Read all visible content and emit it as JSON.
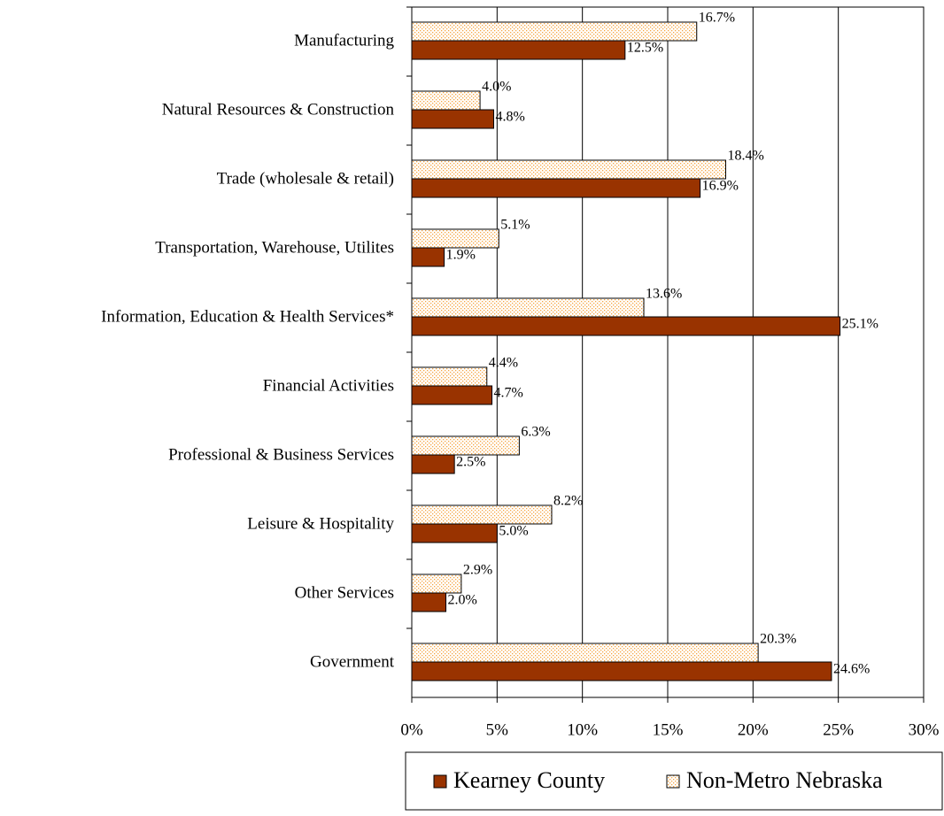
{
  "chart_data": {
    "type": "bar",
    "orientation": "horizontal",
    "categories": [
      "Manufacturing",
      "Natural Resources & Construction",
      "Trade (wholesale & retail)",
      "Transportation, Warehouse, Utilites",
      "Information, Education & Health Services*",
      "Financial Activities",
      "Professional & Business Services",
      "Leisure & Hospitality",
      "Other Services",
      "Government"
    ],
    "series": [
      {
        "name": "Kearney County",
        "color": "#993300",
        "pattern": "solid",
        "values": [
          12.5,
          4.8,
          16.9,
          1.9,
          25.1,
          4.7,
          2.5,
          5.0,
          2.0,
          24.6
        ],
        "value_labels": [
          "12.5%",
          "4.8%",
          "16.9%",
          "1.9%",
          "25.1%",
          "4.7%",
          "2.5%",
          "5.0%",
          "2.0%",
          "24.6%"
        ]
      },
      {
        "name": "Non-Metro Nebraska",
        "color": "#f5a442",
        "pattern": "dots",
        "values": [
          16.7,
          4.0,
          18.4,
          5.1,
          13.6,
          4.4,
          6.3,
          8.2,
          2.9,
          20.3
        ],
        "value_labels": [
          "16.7%",
          "4.0%",
          "18.4%",
          "5.1%",
          "13.6%",
          "4.4%",
          "6.3%",
          "8.2%",
          "2.9%",
          "20.3%"
        ]
      }
    ],
    "xlim": [
      0,
      30
    ],
    "xticks": [
      {
        "value": 0,
        "label": "0%"
      },
      {
        "value": 5,
        "label": "5%"
      },
      {
        "value": 10,
        "label": "10%"
      },
      {
        "value": 15,
        "label": "15%"
      },
      {
        "value": 20,
        "label": "20%"
      },
      {
        "value": 25,
        "label": "25%"
      },
      {
        "value": 30,
        "label": "30%"
      }
    ],
    "grid": true,
    "legend": "bottom"
  }
}
